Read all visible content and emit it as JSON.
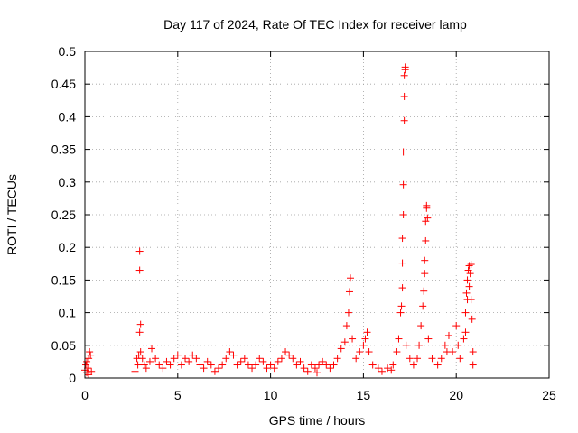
{
  "chart_data": {
    "type": "scatter",
    "title": "Day 117 of 2024, Rate Of TEC Index for receiver lamp",
    "xlabel": "GPS time / hours",
    "ylabel": "ROTI / TECUs",
    "xlim": [
      0,
      25
    ],
    "ylim": [
      0,
      0.5
    ],
    "x_ticks": [
      0,
      5,
      10,
      15,
      20,
      25
    ],
    "x_tick_labels": [
      "0",
      "5",
      "10",
      "15",
      "20",
      "25"
    ],
    "y_ticks": [
      0,
      0.05,
      0.1,
      0.15,
      0.2,
      0.25,
      0.3,
      0.35,
      0.4,
      0.45,
      0.5
    ],
    "y_tick_labels": [
      "0",
      "0.05",
      "0.1",
      "0.15",
      "0.2",
      "0.25",
      "0.3",
      "0.35",
      "0.4",
      "0.45",
      "0.5"
    ],
    "grid": true,
    "marker": "+",
    "color": "#ff0000",
    "series": [
      {
        "points": [
          [
            0.0,
            0.012
          ],
          [
            0.05,
            0.02
          ],
          [
            0.1,
            0.008
          ],
          [
            0.15,
            0.015
          ],
          [
            0.2,
            0.03
          ],
          [
            0.25,
            0.04
          ],
          [
            0.3,
            0.035
          ],
          [
            0.35,
            0.01
          ],
          [
            0.1,
            0.025
          ],
          [
            0.2,
            0.005
          ],
          [
            2.7,
            0.01
          ],
          [
            2.8,
            0.03
          ],
          [
            2.85,
            0.02
          ],
          [
            2.9,
            0.035
          ],
          [
            2.95,
            0.07
          ],
          [
            3.0,
            0.082
          ],
          [
            2.95,
            0.165
          ],
          [
            2.95,
            0.194
          ],
          [
            3.0,
            0.04
          ],
          [
            3.1,
            0.03
          ],
          [
            3.2,
            0.02
          ],
          [
            3.3,
            0.015
          ],
          [
            3.5,
            0.025
          ],
          [
            3.6,
            0.045
          ],
          [
            3.8,
            0.03
          ],
          [
            4.0,
            0.02
          ],
          [
            4.2,
            0.015
          ],
          [
            4.4,
            0.025
          ],
          [
            4.6,
            0.02
          ],
          [
            4.8,
            0.03
          ],
          [
            5.0,
            0.035
          ],
          [
            5.2,
            0.02
          ],
          [
            5.4,
            0.03
          ],
          [
            5.6,
            0.025
          ],
          [
            5.8,
            0.035
          ],
          [
            6.0,
            0.03
          ],
          [
            6.2,
            0.02
          ],
          [
            6.4,
            0.015
          ],
          [
            6.6,
            0.025
          ],
          [
            6.8,
            0.02
          ],
          [
            7.0,
            0.01
          ],
          [
            7.2,
            0.015
          ],
          [
            7.4,
            0.02
          ],
          [
            7.6,
            0.03
          ],
          [
            7.8,
            0.04
          ],
          [
            8.0,
            0.035
          ],
          [
            8.2,
            0.02
          ],
          [
            8.4,
            0.025
          ],
          [
            8.6,
            0.03
          ],
          [
            8.8,
            0.02
          ],
          [
            9.0,
            0.015
          ],
          [
            9.2,
            0.02
          ],
          [
            9.4,
            0.03
          ],
          [
            9.6,
            0.025
          ],
          [
            9.8,
            0.015
          ],
          [
            10.0,
            0.02
          ],
          [
            10.2,
            0.015
          ],
          [
            10.4,
            0.025
          ],
          [
            10.6,
            0.03
          ],
          [
            10.8,
            0.04
          ],
          [
            11.0,
            0.035
          ],
          [
            11.2,
            0.03
          ],
          [
            11.4,
            0.02
          ],
          [
            11.6,
            0.025
          ],
          [
            11.8,
            0.015
          ],
          [
            12.0,
            0.01
          ],
          [
            12.2,
            0.02
          ],
          [
            12.4,
            0.015
          ],
          [
            12.6,
            0.02
          ],
          [
            12.8,
            0.025
          ],
          [
            13.0,
            0.02
          ],
          [
            13.2,
            0.015
          ],
          [
            13.4,
            0.02
          ],
          [
            13.6,
            0.03
          ],
          [
            13.8,
            0.045
          ],
          [
            14.0,
            0.055
          ],
          [
            14.1,
            0.08
          ],
          [
            14.2,
            0.1
          ],
          [
            14.25,
            0.132
          ],
          [
            14.3,
            0.153
          ],
          [
            14.4,
            0.06
          ],
          [
            14.6,
            0.03
          ],
          [
            14.8,
            0.04
          ],
          [
            15.0,
            0.05
          ],
          [
            15.1,
            0.06
          ],
          [
            15.2,
            0.07
          ],
          [
            15.3,
            0.04
          ],
          [
            15.5,
            0.02
          ],
          [
            15.8,
            0.015
          ],
          [
            16.0,
            0.01
          ],
          [
            16.3,
            0.015
          ],
          [
            16.6,
            0.02
          ],
          [
            16.8,
            0.04
          ],
          [
            16.9,
            0.06
          ],
          [
            17.0,
            0.1
          ],
          [
            17.05,
            0.11
          ],
          [
            17.1,
            0.138
          ],
          [
            17.1,
            0.176
          ],
          [
            17.1,
            0.214
          ],
          [
            17.15,
            0.25
          ],
          [
            17.15,
            0.296
          ],
          [
            17.15,
            0.346
          ],
          [
            17.2,
            0.394
          ],
          [
            17.2,
            0.431
          ],
          [
            17.2,
            0.463
          ],
          [
            17.25,
            0.472
          ],
          [
            17.25,
            0.476
          ],
          [
            17.3,
            0.05
          ],
          [
            17.5,
            0.03
          ],
          [
            17.7,
            0.02
          ],
          [
            17.9,
            0.03
          ],
          [
            18.0,
            0.05
          ],
          [
            18.1,
            0.08
          ],
          [
            18.2,
            0.11
          ],
          [
            18.25,
            0.133
          ],
          [
            18.3,
            0.16
          ],
          [
            18.3,
            0.18
          ],
          [
            18.35,
            0.21
          ],
          [
            18.35,
            0.24
          ],
          [
            18.4,
            0.26
          ],
          [
            18.4,
            0.264
          ],
          [
            18.45,
            0.245
          ],
          [
            18.5,
            0.06
          ],
          [
            18.7,
            0.03
          ],
          [
            19.0,
            0.02
          ],
          [
            19.2,
            0.03
          ],
          [
            19.4,
            0.05
          ],
          [
            19.6,
            0.065
          ],
          [
            19.8,
            0.04
          ],
          [
            20.0,
            0.08
          ],
          [
            20.1,
            0.05
          ],
          [
            20.2,
            0.03
          ],
          [
            20.4,
            0.06
          ],
          [
            20.5,
            0.1
          ],
          [
            20.55,
            0.13
          ],
          [
            20.6,
            0.15
          ],
          [
            20.65,
            0.165
          ],
          [
            20.7,
            0.172
          ],
          [
            20.75,
            0.16
          ],
          [
            20.8,
            0.12
          ],
          [
            20.85,
            0.09
          ],
          [
            20.9,
            0.04
          ],
          [
            20.5,
            0.07
          ],
          [
            20.6,
            0.12
          ],
          [
            20.7,
            0.14
          ],
          [
            20.8,
            0.174
          ],
          [
            20.9,
            0.02
          ],
          [
            19.5,
            0.04
          ],
          [
            16.5,
            0.012
          ],
          [
            12.5,
            0.008
          ]
        ]
      }
    ]
  }
}
